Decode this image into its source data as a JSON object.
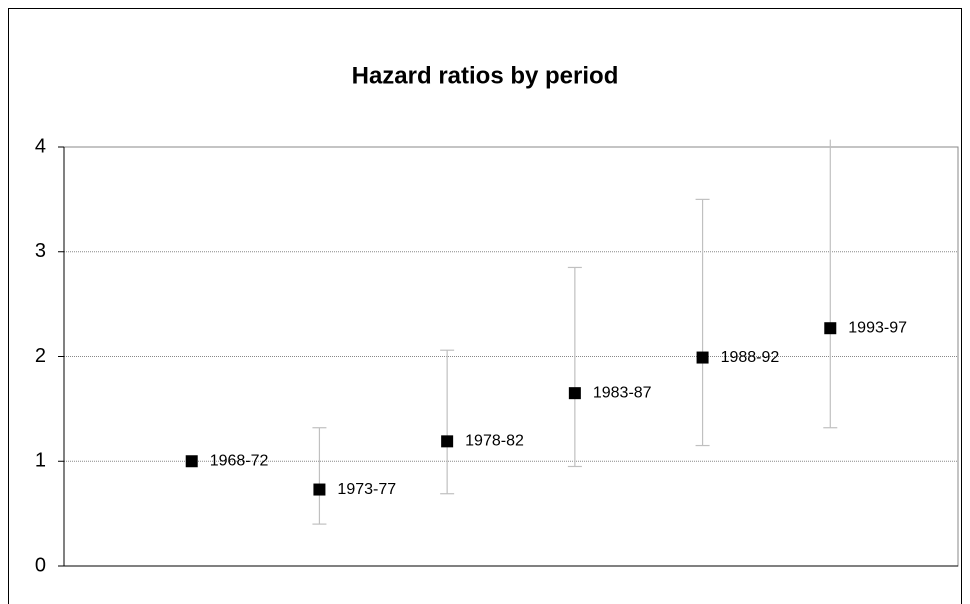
{
  "chart_data": {
    "type": "errorbar",
    "title": "Hazard ratios by period",
    "categories": [
      "1968-72",
      "1973-77",
      "1978-82",
      "1983-87",
      "1988-92",
      "1993-97"
    ],
    "values": [
      1.0,
      0.73,
      1.19,
      1.65,
      1.99,
      2.27
    ],
    "lower": [
      null,
      0.4,
      0.69,
      0.95,
      1.15,
      1.32
    ],
    "upper": [
      null,
      1.32,
      2.06,
      2.85,
      3.5,
      4.07
    ],
    "color": "#000000",
    "error_color": "#c0c0c0",
    "ylim": [
      0,
      4
    ],
    "yticks": [
      0,
      1,
      2,
      3,
      4
    ],
    "grid": true
  }
}
